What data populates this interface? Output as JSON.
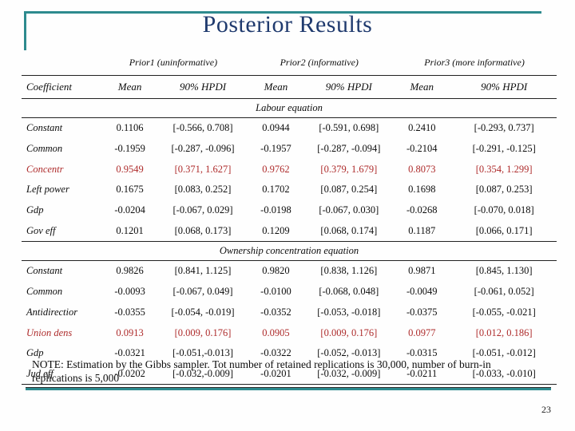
{
  "slide": {
    "title": "Posterior Results",
    "note": "NOTE: Estimation by the Gibbs sampler. Tot number of retained replications is 30,000, number of burn-in replications is 5,000",
    "page_number": "23"
  },
  "colors": {
    "accent": "#2e8b8e",
    "title": "#1f3a6e",
    "highlight": "#ae2c2c"
  },
  "table": {
    "prior_headers": [
      "Prior1 (uninformative)",
      "Prior2 (informative)",
      "Prior3 (more informative)"
    ],
    "column_headers": [
      "Coefficient",
      "Mean",
      "90% HPDI",
      "Mean",
      "90% HPDI",
      "Mean",
      "90% HPDI"
    ],
    "sections": [
      {
        "title": "Labour equation",
        "rows": [
          {
            "coef": "Constant",
            "highlight": false,
            "cells": [
              "0.1106",
              "[-0.566, 0.708]",
              "0.0944",
              "[-0.591, 0.698]",
              "0.2410",
              "[-0.293, 0.737]"
            ]
          },
          {
            "coef": "Common",
            "highlight": false,
            "cells": [
              "-0.1959",
              "[-0.287, -0.096]",
              "-0.1957",
              "[-0.287, -0.094]",
              "-0.2104",
              "[-0.291, -0.125]"
            ]
          },
          {
            "coef": "Concentr",
            "highlight": true,
            "cells": [
              "0.9549",
              "[0.371, 1.627]",
              "0.9762",
              "[0.379, 1.679]",
              "0.8073",
              "[0.354, 1.299]"
            ]
          },
          {
            "coef": "Left power",
            "highlight": false,
            "cells": [
              "0.1675",
              "[0.083, 0.252]",
              "0.1702",
              "[0.087, 0.254]",
              "0.1698",
              "[0.087, 0.253]"
            ]
          },
          {
            "coef": "Gdp",
            "highlight": false,
            "cells": [
              "-0.0204",
              "[-0.067, 0.029]",
              "-0.0198",
              "[-0.067, 0.030]",
              "-0.0268",
              "[-0.070, 0.018]"
            ]
          },
          {
            "coef": "Gov eff",
            "highlight": false,
            "cells": [
              "0.1201",
              "[0.068, 0.173]",
              "0.1209",
              "[0.068, 0.174]",
              "0.1187",
              "[0.066, 0.171]"
            ]
          }
        ]
      },
      {
        "title": "Ownership concentration equation",
        "rows": [
          {
            "coef": "Constant",
            "highlight": false,
            "cells": [
              "0.9826",
              "[0.841, 1.125]",
              "0.9820",
              "[0.838, 1.126]",
              "0.9871",
              "[0.845, 1.130]"
            ]
          },
          {
            "coef": "Common",
            "highlight": false,
            "cells": [
              "-0.0093",
              "[-0.067, 0.049]",
              "-0.0100",
              "[-0.068, 0.048]",
              "-0.0049",
              "[-0.061, 0.052]"
            ]
          },
          {
            "coef": "Antidirectior",
            "highlight": false,
            "cells": [
              "-0.0355",
              "[-0.054, -0.019]",
              "-0.0352",
              "[-0.053, -0.018]",
              "-0.0375",
              "[-0.055, -0.021]"
            ]
          },
          {
            "coef": "Union dens",
            "highlight": true,
            "cells": [
              "0.0913",
              "[0.009, 0.176]",
              "0.0905",
              "[0.009, 0.176]",
              "0.0977",
              "[0.012, 0.186]"
            ]
          },
          {
            "coef": "Gdp",
            "highlight": false,
            "cells": [
              "-0.0321",
              "[-0.051,-0.013]",
              "-0.0322",
              "[-0.052, -0.013]",
              "-0.0315",
              "[-0.051, -0.012]"
            ]
          },
          {
            "coef": "Jud eff",
            "highlight": false,
            "cells": [
              "-0.0202",
              "[-0.032,-0.009]",
              "-0.0201",
              "[-0.032, -0.009]",
              "-0.0211",
              "[-0.033, -0.010]"
            ]
          }
        ]
      }
    ]
  }
}
